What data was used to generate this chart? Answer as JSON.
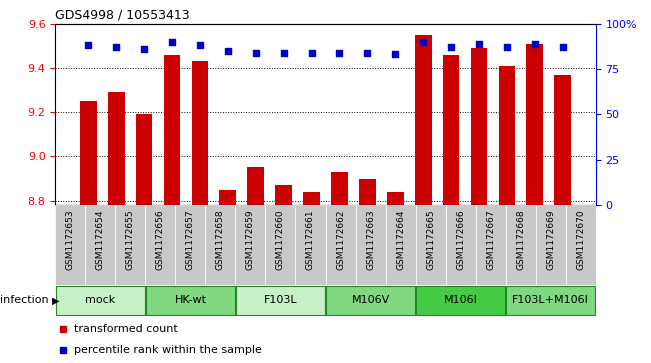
{
  "title": "GDS4998 / 10553413",
  "samples": [
    "GSM1172653",
    "GSM1172654",
    "GSM1172655",
    "GSM1172656",
    "GSM1172657",
    "GSM1172658",
    "GSM1172659",
    "GSM1172660",
    "GSM1172661",
    "GSM1172662",
    "GSM1172663",
    "GSM1172664",
    "GSM1172665",
    "GSM1172666",
    "GSM1172667",
    "GSM1172668",
    "GSM1172669",
    "GSM1172670"
  ],
  "transformed_counts": [
    9.25,
    9.29,
    9.19,
    9.46,
    9.43,
    8.85,
    8.95,
    8.87,
    8.84,
    8.93,
    8.9,
    8.84,
    9.55,
    9.46,
    9.49,
    9.41,
    9.51,
    9.37
  ],
  "percentile_ranks": [
    88,
    87,
    86,
    90,
    88,
    85,
    84,
    84,
    84,
    84,
    84,
    83,
    90,
    87,
    89,
    87,
    89,
    87
  ],
  "groups": [
    {
      "label": "mock",
      "color": "#c8f0c8",
      "start": 0,
      "end": 2
    },
    {
      "label": "HK-wt",
      "color": "#80d880",
      "start": 3,
      "end": 5
    },
    {
      "label": "F103L",
      "color": "#c8f0c8",
      "start": 6,
      "end": 8
    },
    {
      "label": "M106V",
      "color": "#80d880",
      "start": 9,
      "end": 11
    },
    {
      "label": "M106I",
      "color": "#44cc44",
      "start": 12,
      "end": 14
    },
    {
      "label": "F103L+M106I",
      "color": "#80d880",
      "start": 15,
      "end": 17
    }
  ],
  "ylim_left": [
    8.78,
    9.6
  ],
  "ylim_right": [
    0,
    100
  ],
  "yticks_left": [
    8.8,
    9.0,
    9.2,
    9.4,
    9.6
  ],
  "yticks_right": [
    0,
    25,
    50,
    75,
    100
  ],
  "bar_color": "#cc0000",
  "dot_color": "#0000cc",
  "bar_bottom": 8.78,
  "infection_label": "infection",
  "legend_bar": "transformed count",
  "legend_dot": "percentile rank within the sample",
  "bg_color": "#c8c8c8",
  "plot_bg": "#ffffff",
  "group_border_color": "#228822"
}
